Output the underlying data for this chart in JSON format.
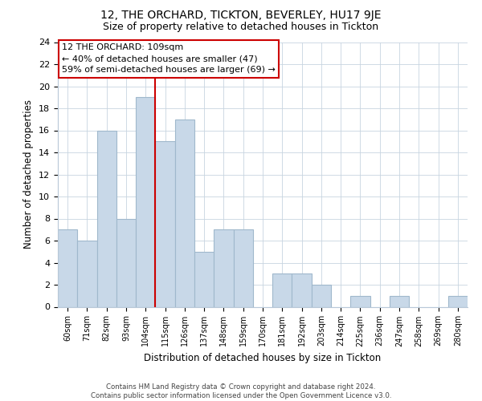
{
  "title1": "12, THE ORCHARD, TICKTON, BEVERLEY, HU17 9JE",
  "title2": "Size of property relative to detached houses in Tickton",
  "xlabel": "Distribution of detached houses by size in Tickton",
  "ylabel": "Number of detached properties",
  "bar_labels": [
    "60sqm",
    "71sqm",
    "82sqm",
    "93sqm",
    "104sqm",
    "115sqm",
    "126sqm",
    "137sqm",
    "148sqm",
    "159sqm",
    "170sqm",
    "181sqm",
    "192sqm",
    "203sqm",
    "214sqm",
    "225sqm",
    "236sqm",
    "247sqm",
    "258sqm",
    "269sqm",
    "280sqm"
  ],
  "bar_heights": [
    7,
    6,
    16,
    8,
    19,
    15,
    17,
    5,
    7,
    7,
    0,
    3,
    3,
    2,
    0,
    1,
    0,
    1,
    0,
    0,
    1
  ],
  "bar_color": "#c8d8e8",
  "bar_edge_color": "#a0b8cc",
  "vline_x": 5,
  "vline_color": "#cc0000",
  "annotation_title": "12 THE ORCHARD: 109sqm",
  "annotation_line1": "← 40% of detached houses are smaller (47)",
  "annotation_line2": "59% of semi-detached houses are larger (69) →",
  "annotation_box_edge": "#cc0000",
  "ylim": [
    0,
    24
  ],
  "yticks": [
    0,
    2,
    4,
    6,
    8,
    10,
    12,
    14,
    16,
    18,
    20,
    22,
    24
  ],
  "footer1": "Contains HM Land Registry data © Crown copyright and database right 2024.",
  "footer2": "Contains public sector information licensed under the Open Government Licence v3.0."
}
